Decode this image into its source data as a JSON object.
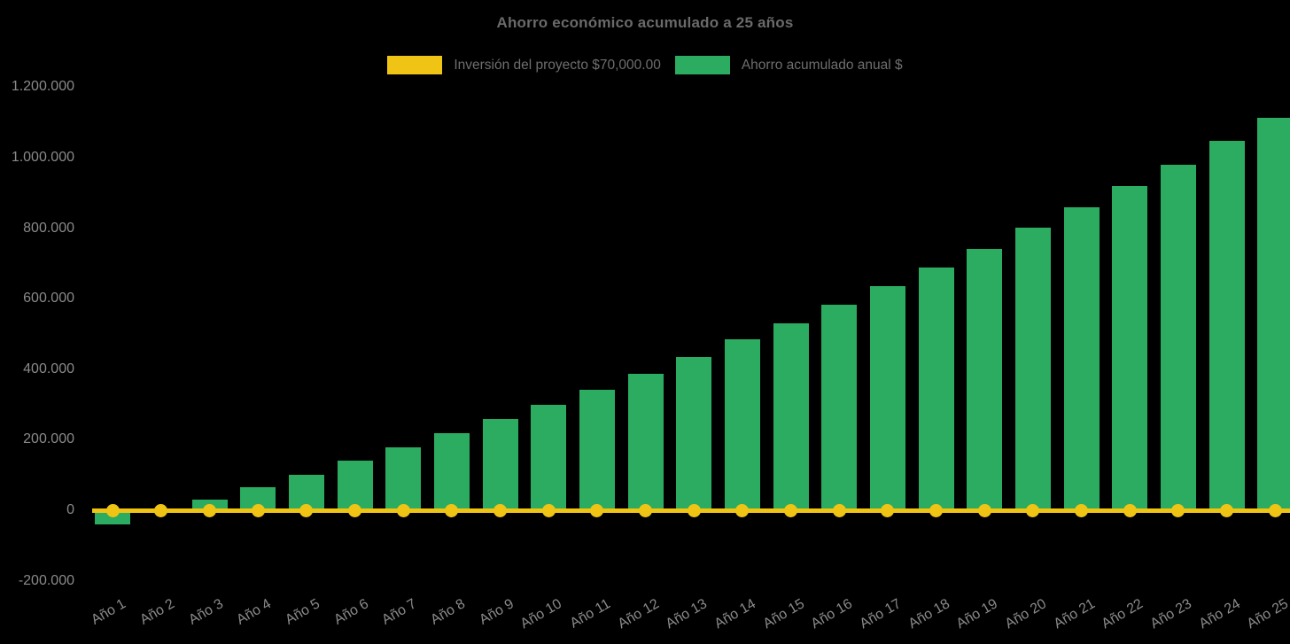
{
  "title": "Ahorro económico acumulado a 25 años",
  "legend": [
    {
      "label": "Inversión del proyecto $70,000.00",
      "color": "#F0C414",
      "type": "line"
    },
    {
      "label": "Ahorro acumulado anual $",
      "color": "#2BAC60",
      "type": "bar"
    }
  ],
  "colors": {
    "background": "#000000",
    "title_text": "#6A6A6A",
    "legend_text": "#6D6E70",
    "axis_text": "#8A8A8A",
    "bar_green": "#2BAC60",
    "line_yellow": "#F0C414"
  },
  "chart_data": {
    "type": "bar",
    "title": "Ahorro económico acumulado a 25 años",
    "xlabel": "",
    "ylabel": "",
    "legend_position": "top",
    "grid": false,
    "categories": [
      "Año 1",
      "Año 2",
      "Año 3",
      "Año 4",
      "Año 5",
      "Año 6",
      "Año 7",
      "Año 8",
      "Año 9",
      "Año 10",
      "Año 11",
      "Año 12",
      "Año 13",
      "Año 14",
      "Año 15",
      "Año 16",
      "Año 17",
      "Año 18",
      "Año 19",
      "Año 20",
      "Año 21",
      "Año 22",
      "Año 23",
      "Año 24",
      "Año 25"
    ],
    "series": [
      {
        "name": "Inversión del proyecto $70,000.00",
        "type": "line",
        "color": "#F0C414",
        "values": [
          70000,
          70000,
          70000,
          70000,
          70000,
          70000,
          70000,
          70000,
          70000,
          70000,
          70000,
          70000,
          70000,
          70000,
          70000,
          70000,
          70000,
          70000,
          70000,
          70000,
          70000,
          70000,
          70000,
          70000,
          70000
        ]
      },
      {
        "name": "Ahorro acumulado anual $",
        "type": "bar",
        "color": "#2BAC60",
        "values": [
          -40000,
          -5000,
          30000,
          65000,
          101000,
          140000,
          178000,
          218000,
          260000,
          300000,
          342000,
          388000,
          435000,
          484000,
          530000,
          582000,
          635000,
          688000,
          742000,
          802000,
          859000,
          919000,
          980000,
          1048000,
          1114000
        ]
      }
    ],
    "y_ticks": [
      {
        "label": "1.200.000",
        "value": 1200000
      },
      {
        "label": "1.000.000",
        "value": 1000000
      },
      {
        "label": "800.000",
        "value": 800000
      },
      {
        "label": "600.000",
        "value": 600000
      },
      {
        "label": "400.000",
        "value": 400000
      },
      {
        "label": "200.000",
        "value": 200000
      },
      {
        "label": "0",
        "value": 0
      },
      {
        "label": "-200.000",
        "value": -200000
      }
    ],
    "ylim": [
      -200000,
      1200000
    ],
    "line_rendered_at_value": 0
  }
}
